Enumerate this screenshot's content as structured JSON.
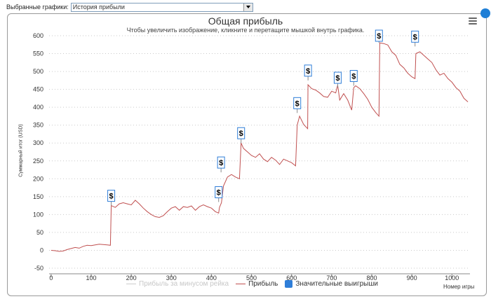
{
  "controls": {
    "label": "Выбранные графики:",
    "selected": "История прибыли"
  },
  "colors": {
    "profit": "#c05050",
    "rake": "#cccccc",
    "wins": "#2f7ed8",
    "grid": "#c9c9c9"
  },
  "chart_data": {
    "type": "line",
    "title": "Общая прибыль",
    "subtitle": "Чтобы увеличить изображение, кликните и перетащите мышкой внутрь графика.",
    "xlabel": "Номер игры",
    "ylabel": "Суммарный итог (USD)",
    "xlim": [
      -5,
      1045
    ],
    "ylim": [
      -50,
      600
    ],
    "xticks": [
      0,
      100,
      200,
      300,
      400,
      500,
      600,
      700,
      800,
      900,
      1000
    ],
    "yticks": [
      -50,
      0,
      50,
      100,
      150,
      200,
      250,
      300,
      350,
      400,
      450,
      500,
      550,
      600
    ],
    "grid": "dotted horizontal",
    "legend_position": "bottom",
    "series": [
      {
        "name": "Прибыль за минусом рейка",
        "color": "#cccccc",
        "visible": false
      },
      {
        "name": "Прибыль",
        "color": "#c05050",
        "x": [
          0,
          10,
          20,
          30,
          40,
          50,
          60,
          70,
          80,
          90,
          100,
          110,
          120,
          130,
          140,
          148,
          150,
          160,
          170,
          180,
          190,
          200,
          210,
          220,
          230,
          240,
          250,
          260,
          270,
          280,
          290,
          300,
          310,
          320,
          330,
          340,
          350,
          360,
          370,
          380,
          390,
          400,
          410,
          418,
          420,
          425,
          430,
          440,
          450,
          460,
          470,
          474,
          480,
          490,
          500,
          510,
          520,
          530,
          540,
          550,
          560,
          570,
          580,
          590,
          600,
          610,
          614,
          620,
          630,
          640,
          641,
          650,
          660,
          670,
          680,
          690,
          700,
          710,
          715,
          720,
          730,
          740,
          750,
          755,
          760,
          770,
          780,
          790,
          800,
          810,
          818,
          820,
          830,
          840,
          850,
          860,
          870,
          880,
          890,
          900,
          908,
          910,
          920,
          930,
          940,
          950,
          960,
          970,
          980,
          990,
          1000,
          1010,
          1020,
          1030,
          1040
        ],
        "y": [
          0,
          -1,
          -3,
          -2,
          2,
          5,
          8,
          6,
          11,
          14,
          13,
          15,
          17,
          16,
          15,
          14,
          125,
          120,
          130,
          133,
          130,
          127,
          140,
          130,
          118,
          108,
          100,
          94,
          92,
          97,
          108,
          118,
          122,
          112,
          122,
          120,
          124,
          112,
          122,
          127,
          122,
          118,
          108,
          104,
          120,
          133,
          180,
          205,
          212,
          205,
          200,
          300,
          285,
          275,
          265,
          260,
          270,
          255,
          248,
          260,
          252,
          240,
          255,
          250,
          245,
          236,
          350,
          375,
          352,
          340,
          463,
          452,
          448,
          440,
          430,
          428,
          445,
          440,
          462,
          420,
          438,
          420,
          392,
          455,
          460,
          452,
          438,
          422,
          400,
          385,
          375,
          580,
          578,
          574,
          555,
          545,
          520,
          510,
          495,
          485,
          480,
          550,
          555,
          545,
          535,
          525,
          505,
          490,
          495,
          480,
          470,
          455,
          445,
          425,
          415
        ]
      },
      {
        "name": "Значительные выигрыши",
        "color": "#2f7ed8",
        "type": "flags",
        "flag_label": "$",
        "x": [
          150,
          418,
          424,
          474,
          614,
          641,
          715,
          755,
          818,
          908
        ],
        "y": [
          125,
          135,
          218,
          300,
          384,
          475,
          455,
          460,
          580,
          570
        ]
      }
    ]
  }
}
